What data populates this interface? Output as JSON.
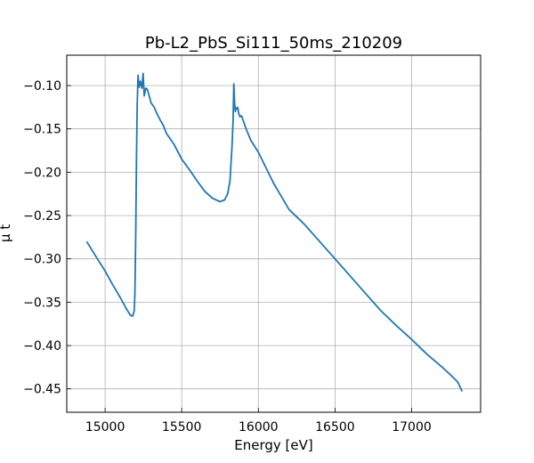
{
  "chart_data": {
    "type": "line",
    "title": "Pb-L2_PbS_Si111_50ms_210209",
    "xlabel": "Energy [eV]",
    "ylabel": "μ t",
    "xlim": [
      14750,
      17450
    ],
    "ylim": [
      -0.477,
      -0.065
    ],
    "grid": true,
    "xticks": [
      15000,
      15500,
      16000,
      16500,
      17000
    ],
    "yticks": [
      -0.1,
      -0.15,
      -0.2,
      -0.25,
      -0.3,
      -0.35,
      -0.4,
      -0.45
    ],
    "xtick_labels": [
      "15000",
      "15500",
      "16000",
      "16500",
      "17000"
    ],
    "ytick_labels": [
      "−0.10",
      "−0.15",
      "−0.20",
      "−0.25",
      "−0.30",
      "−0.35",
      "−0.40",
      "−0.45"
    ],
    "series": [
      {
        "color": "#1f77b4",
        "x": [
          14880,
          14950,
          15000,
          15050,
          15100,
          15140,
          15165,
          15180,
          15190,
          15195,
          15200,
          15205,
          15210,
          15215,
          15222,
          15230,
          15240,
          15248,
          15255,
          15265,
          15275,
          15285,
          15300,
          15320,
          15340,
          15360,
          15380,
          15400,
          15450,
          15500,
          15550,
          15600,
          15650,
          15700,
          15750,
          15780,
          15800,
          15815,
          15828,
          15835,
          15840,
          15845,
          15850,
          15855,
          15860,
          15865,
          15872,
          15880,
          15890,
          15900,
          15920,
          15950,
          16000,
          16050,
          16100,
          16150,
          16200,
          16300,
          16400,
          16500,
          16600,
          16700,
          16800,
          16900,
          17000,
          17100,
          17200,
          17260,
          17300,
          17330
        ],
        "y": [
          -0.28,
          -0.3,
          -0.314,
          -0.33,
          -0.345,
          -0.358,
          -0.365,
          -0.366,
          -0.36,
          -0.34,
          -0.27,
          -0.18,
          -0.12,
          -0.088,
          -0.102,
          -0.095,
          -0.103,
          -0.086,
          -0.112,
          -0.103,
          -0.104,
          -0.11,
          -0.12,
          -0.125,
          -0.133,
          -0.14,
          -0.146,
          -0.155,
          -0.168,
          -0.185,
          -0.197,
          -0.21,
          -0.222,
          -0.23,
          -0.234,
          -0.232,
          -0.225,
          -0.21,
          -0.17,
          -0.14,
          -0.098,
          -0.12,
          -0.13,
          -0.126,
          -0.127,
          -0.125,
          -0.132,
          -0.136,
          -0.135,
          -0.14,
          -0.15,
          -0.163,
          -0.177,
          -0.195,
          -0.213,
          -0.228,
          -0.243,
          -0.26,
          -0.28,
          -0.3,
          -0.32,
          -0.34,
          -0.36,
          -0.377,
          -0.393,
          -0.41,
          -0.425,
          -0.435,
          -0.442,
          -0.453
        ]
      }
    ]
  }
}
